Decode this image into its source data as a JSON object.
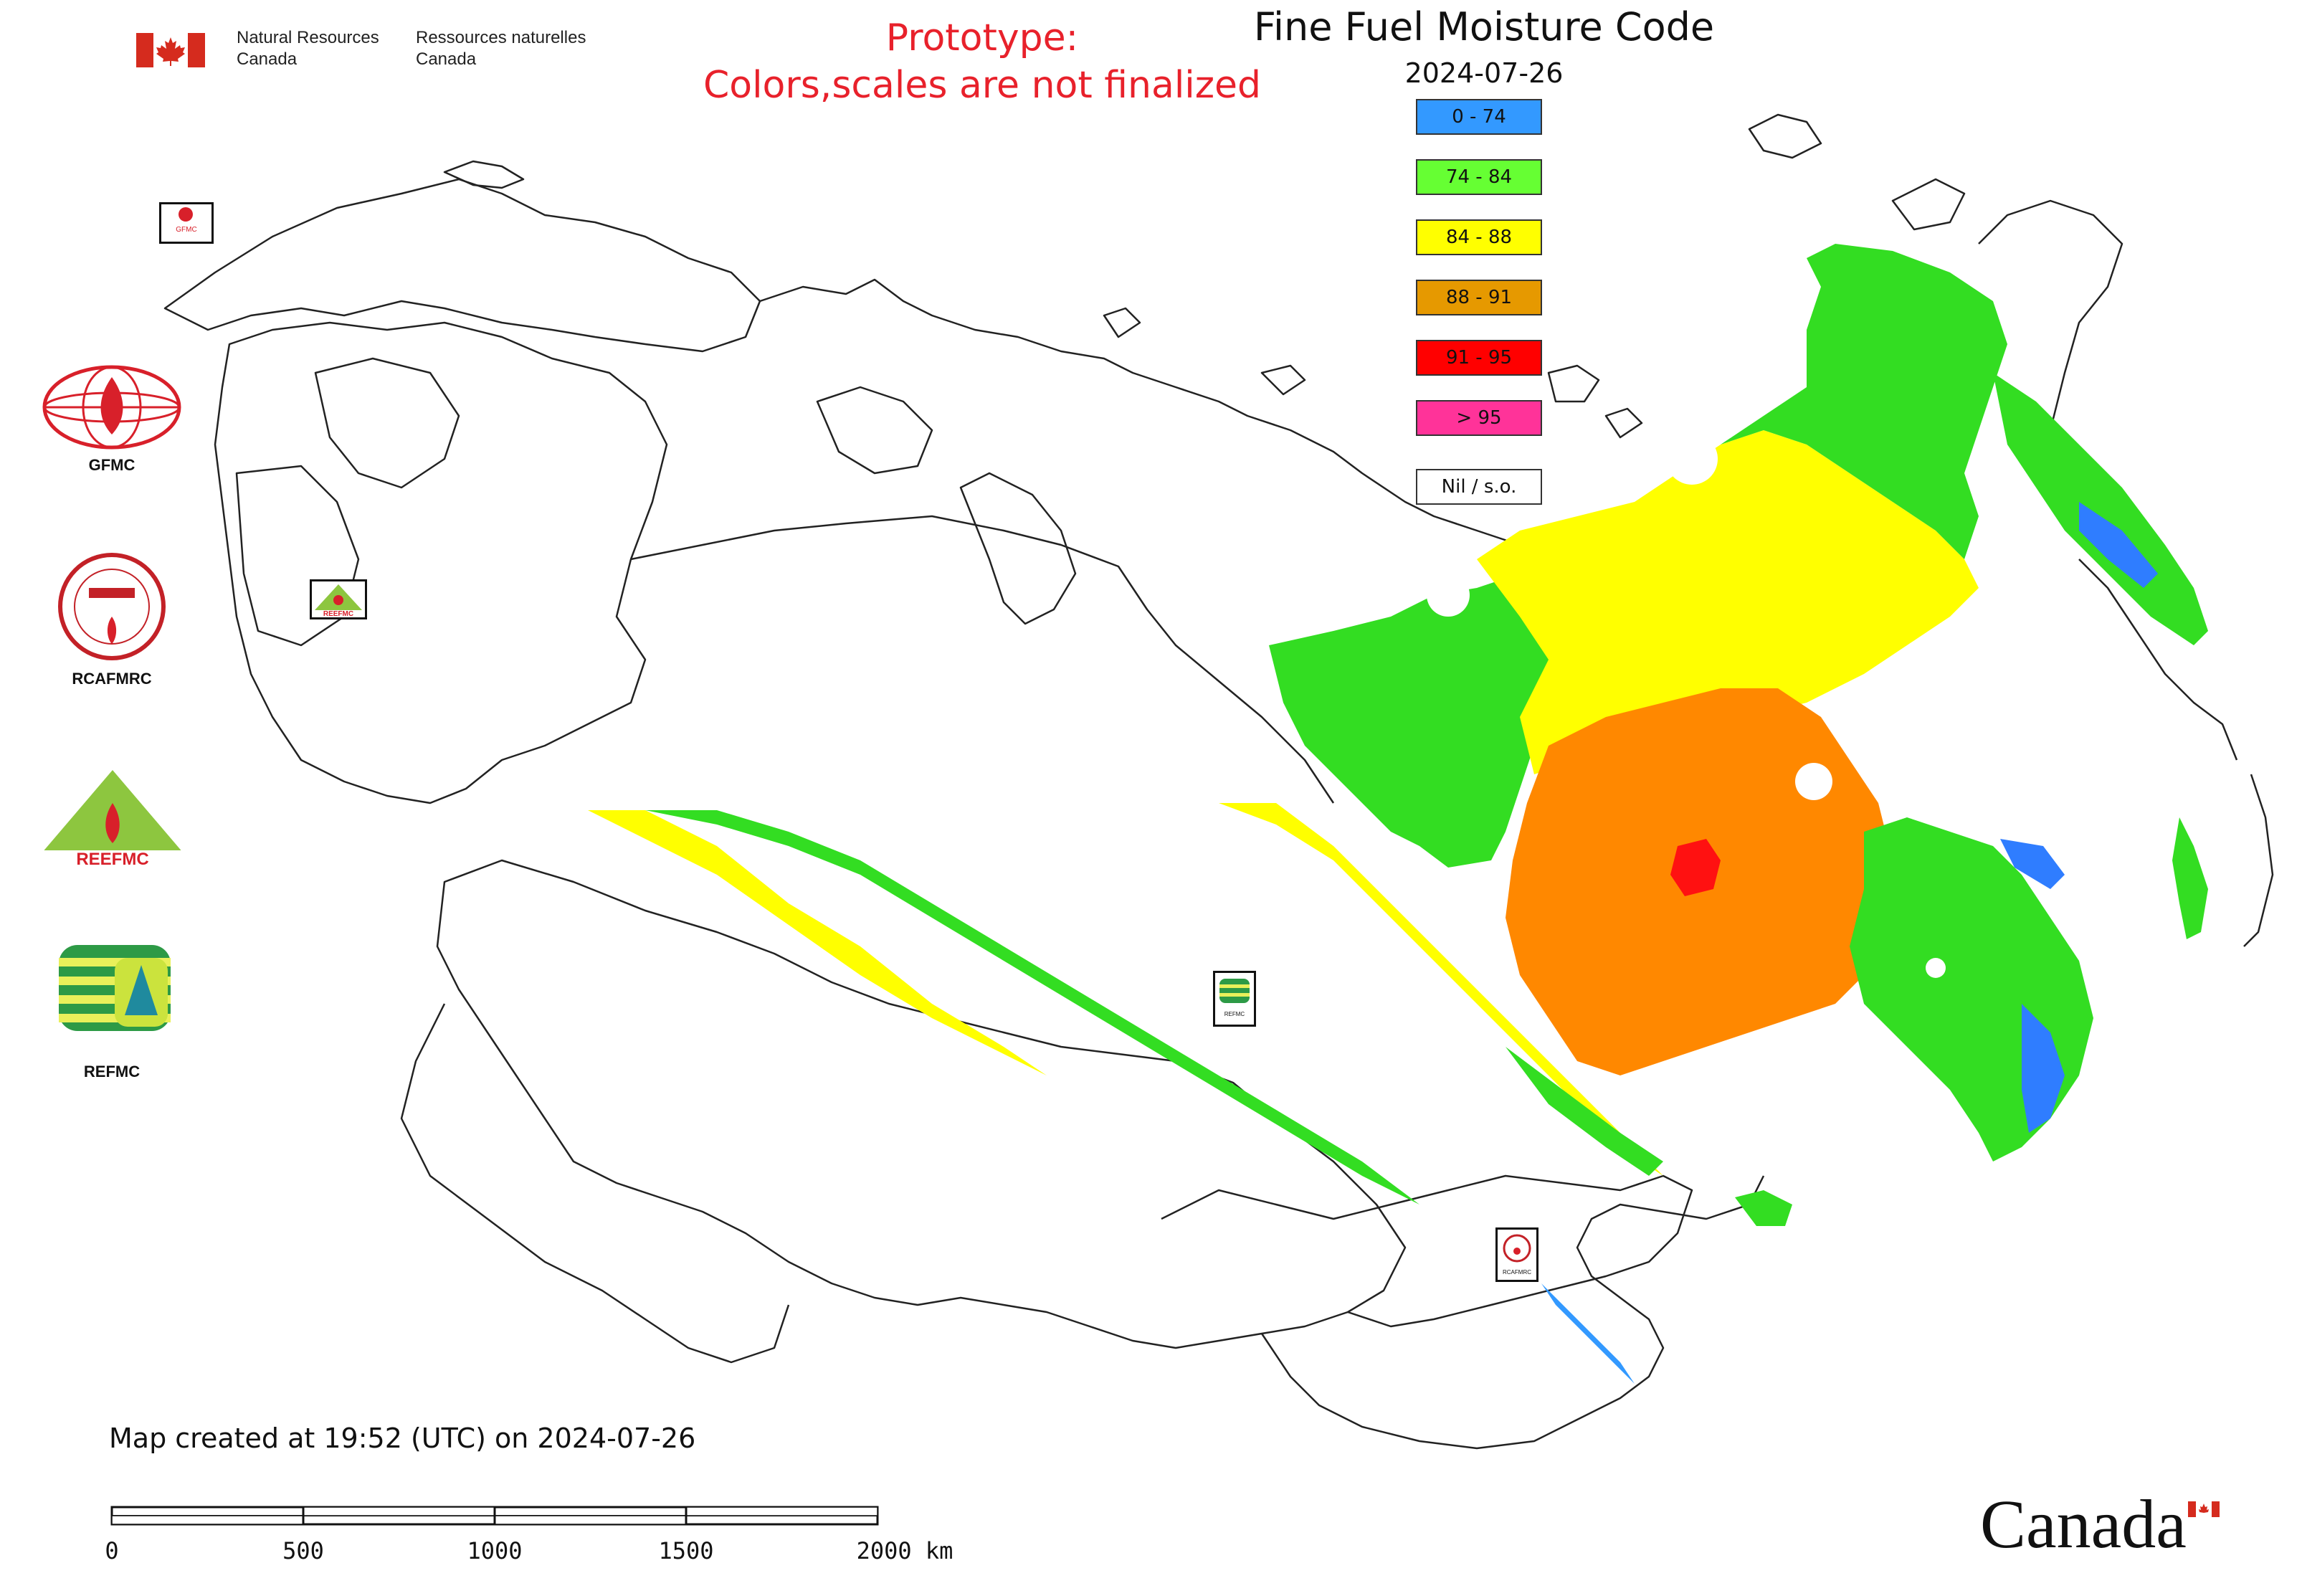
{
  "header": {
    "agency_en_1": "Natural Resources",
    "agency_en_2": "Canada",
    "agency_fr_1": "Ressources naturelles",
    "agency_fr_2": "Canada"
  },
  "banner": {
    "line1": "Prototype:",
    "line2": "Colors,scales are not finalized"
  },
  "map": {
    "title": "Fine Fuel Moisture Code",
    "date": "2024-07-26",
    "created_note": "Map created at 19:52 (UTC) on 2024-07-26"
  },
  "legend": {
    "items": [
      {
        "label": "0 - 74",
        "color": "#3399ff"
      },
      {
        "label": "74 - 84",
        "color": "#66ff33"
      },
      {
        "label": "84 - 88",
        "color": "#ffff00"
      },
      {
        "label": "88 - 91",
        "color": "#e69900"
      },
      {
        "label": "91 - 95",
        "color": "#ff0000"
      },
      {
        "label": "> 95",
        "color": "#ff3399"
      },
      {
        "label": "Nil / s.o.",
        "color": "#ffffff"
      }
    ]
  },
  "logos": [
    {
      "label": "GFMC",
      "icon": "gfmc-logo-icon"
    },
    {
      "label": "RCAFMRC",
      "icon": "rcafmrc-logo-icon"
    },
    {
      "label": "REEFMC",
      "icon": "reefmc-logo-icon"
    },
    {
      "label": "REFMC",
      "icon": "refmc-logo-icon"
    }
  ],
  "map_markers": [
    {
      "label": "GFMC"
    },
    {
      "label": "REEFMC"
    },
    {
      "label": "REFMC"
    },
    {
      "label": "RCAFMRC"
    }
  ],
  "scale_bar": {
    "ticks": [
      "0",
      "500",
      "1000",
      "1500",
      "2000 km"
    ]
  },
  "footer": {
    "wordmark": "Canada"
  },
  "colors": {
    "banner_red": "#e8212b",
    "flag_red": "#d52b1e",
    "fuel_green": "#33dd22",
    "fuel_yellow": "#ffff00",
    "fuel_orange": "#ff8800",
    "fuel_red": "#ff1111",
    "fuel_blue": "#2f7dff"
  }
}
